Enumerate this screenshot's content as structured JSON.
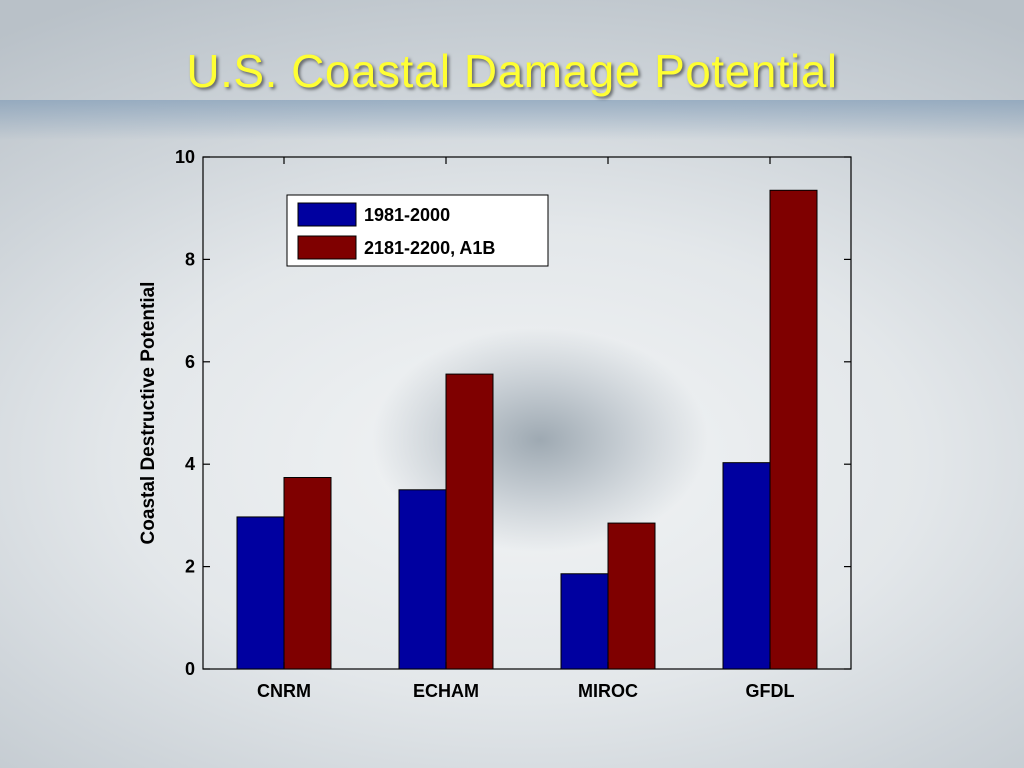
{
  "chart_data": {
    "type": "bar",
    "title": "U.S. Coastal Damage Potential",
    "xlabel": "",
    "ylabel": "Coastal Destructive Potential",
    "ylim": [
      0,
      10
    ],
    "yticks": [
      "0",
      "2",
      "4",
      "6",
      "8",
      "10"
    ],
    "categories": [
      "CNRM",
      "ECHAM",
      "MIROC",
      "GFDL"
    ],
    "series": [
      {
        "name": "1981-2000",
        "color": "#0000a0",
        "values": [
          2.97,
          3.5,
          1.86,
          4.03
        ]
      },
      {
        "name": "2181-2200, A1B",
        "color": "#7f0000",
        "values": [
          3.74,
          5.76,
          2.85,
          9.35
        ]
      }
    ],
    "legend_position": "top-left",
    "grid": false
  }
}
